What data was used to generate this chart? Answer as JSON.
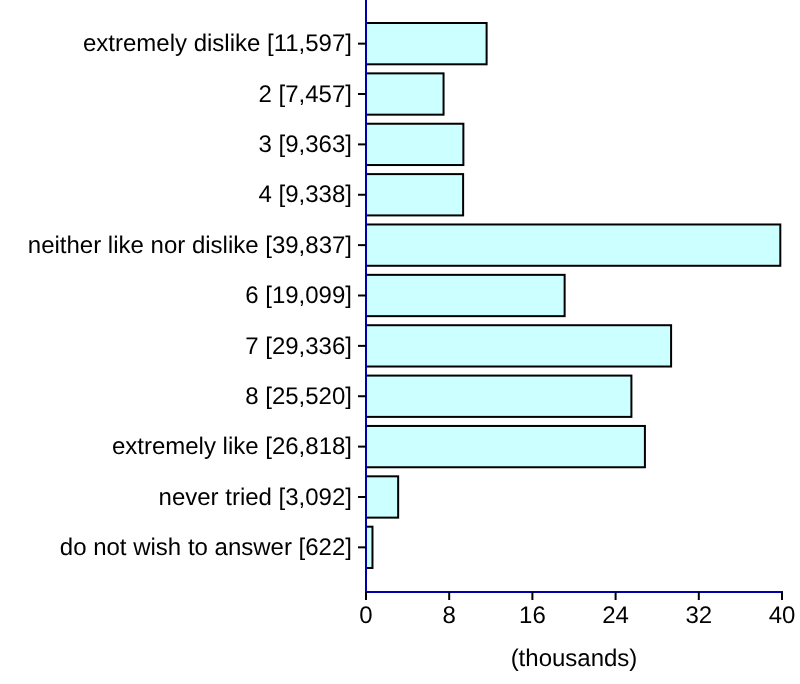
{
  "chart_data": {
    "type": "bar",
    "orientation": "horizontal",
    "xlabel": "(thousands)",
    "categories": [
      "extremely dislike [11,597]",
      "2 [7,457]",
      "3 [9,363]",
      "4 [9,338]",
      "neither like nor dislike [39,837]",
      "6 [19,099]",
      "7 [29,336]",
      "8 [25,520]",
      "extremely like [26,818]",
      "never tried [3,092]",
      "do not wish to answer [622]"
    ],
    "values": [
      11.597,
      7.457,
      9.363,
      9.338,
      39.837,
      19.099,
      29.336,
      25.52,
      26.818,
      3.092,
      0.622
    ],
    "color": "#ccffff",
    "xlim": [
      0,
      40
    ],
    "xticks": [
      0,
      8,
      16,
      24,
      32,
      40
    ]
  }
}
